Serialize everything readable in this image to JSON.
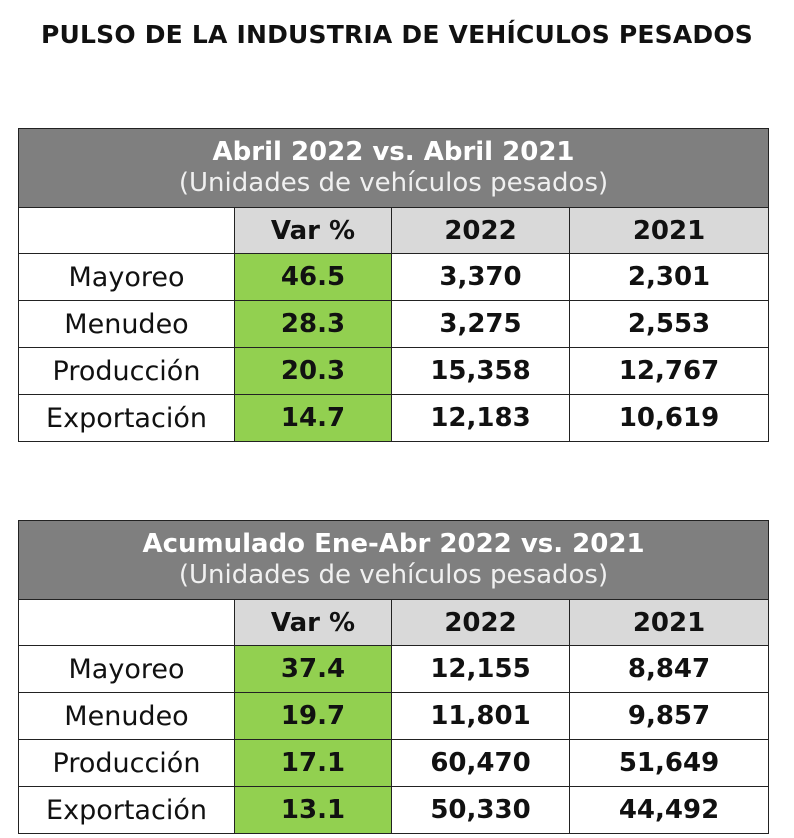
{
  "title": "PULSO DE LA INDUSTRIA DE VEHÍCULOS PESADOS",
  "colors": {
    "header_bg": "#7f7f7f",
    "column_header_bg": "#d9d9d9",
    "var_highlight": "#92d050"
  },
  "tables": [
    {
      "title": "Abril 2022 vs. Abril 2021",
      "subtitle": "(Unidades de vehículos pesados)",
      "columns": [
        "",
        "Var %",
        "2022",
        "2021"
      ],
      "rows": [
        {
          "label": "Mayoreo",
          "var": "46.5",
          "y2022": "3,370",
          "y2021": "2,301"
        },
        {
          "label": "Menudeo",
          "var": "28.3",
          "y2022": "3,275",
          "y2021": "2,553"
        },
        {
          "label": "Producción",
          "var": "20.3",
          "y2022": "15,358",
          "y2021": "12,767"
        },
        {
          "label": "Exportación",
          "var": "14.7",
          "y2022": "12,183",
          "y2021": "10,619"
        }
      ]
    },
    {
      "title": "Acumulado Ene-Abr 2022 vs. 2021",
      "subtitle": "(Unidades de vehículos pesados)",
      "columns": [
        "",
        "Var %",
        "2022",
        "2021"
      ],
      "rows": [
        {
          "label": "Mayoreo",
          "var": "37.4",
          "y2022": "12,155",
          "y2021": "8,847"
        },
        {
          "label": "Menudeo",
          "var": "19.7",
          "y2022": "11,801",
          "y2021": "9,857"
        },
        {
          "label": "Producción",
          "var": "17.1",
          "y2022": "60,470",
          "y2021": "51,649"
        },
        {
          "label": "Exportación",
          "var": "13.1",
          "y2022": "50,330",
          "y2021": "44,492"
        }
      ]
    }
  ]
}
